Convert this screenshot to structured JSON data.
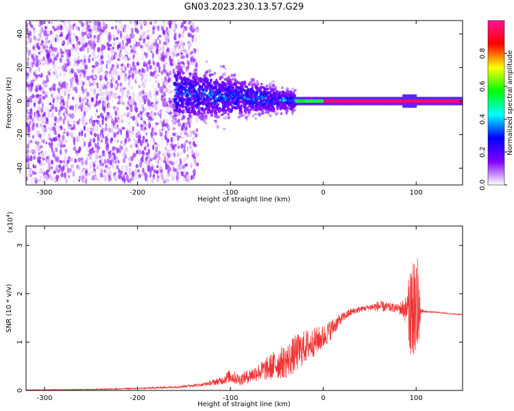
{
  "figure": {
    "title": "GN03.2023.230.13.57.G29"
  },
  "chart_data": [
    {
      "type": "heatmap",
      "title": "GN03.2023.230.13.57.G29",
      "xlabel": "Height of straight line (km)",
      "ylabel": "Frequency (Hz)",
      "xlim": [
        -320,
        150
      ],
      "ylim": [
        -50,
        48
      ],
      "x_ticks": [
        -300,
        -200,
        -100,
        0,
        100
      ],
      "y_ticks": [
        -40,
        -20,
        0,
        20,
        40
      ],
      "x_tick_labels": [
        "-300",
        "-200",
        "-100",
        "0",
        "100"
      ],
      "y_tick_labels": [
        "-40",
        "-20",
        "0",
        "20",
        "40"
      ],
      "colorbar": {
        "label": "Normalized spectral amplitude",
        "range": [
          0,
          1
        ],
        "ticks": [
          0.0,
          0.2,
          0.4,
          0.6,
          0.8
        ],
        "tick_labels": [
          "0.0",
          "0.2",
          "0.4",
          "0.6",
          "0.8"
        ],
        "colors": [
          "#ffffff",
          "#8000ff",
          "#0000ff",
          "#00ffff",
          "#00ff00",
          "#ffff00",
          "#ff0000",
          "#ff1493"
        ]
      },
      "features": [
        {
          "x_range": [
            -320,
            -160
          ],
          "description_level": 0.1,
          "spread_hz": 48
        },
        {
          "x_range": [
            -160,
            -30
          ],
          "center_hz": 5,
          "level": 0.25
        },
        {
          "x_range": [
            -30,
            150
          ],
          "center_hz": 0,
          "level": 0.95
        }
      ]
    },
    {
      "type": "line",
      "xlabel": "Height of straight line (km)",
      "ylabel": "SNR (10 * v/v)",
      "y_multiplier_label": "(x10",
      "y_multiplier_exp": "4",
      "y_multiplier_close": ")",
      "xlim": [
        -320,
        150
      ],
      "ylim": [
        0,
        3.4
      ],
      "x_ticks": [
        -300,
        -200,
        -100,
        0,
        100
      ],
      "y_ticks": [
        0,
        1,
        2,
        3
      ],
      "x_tick_labels": [
        "-300",
        "-200",
        "-100",
        "0",
        "100"
      ],
      "y_tick_labels": [
        "0",
        "1",
        "2",
        "3"
      ],
      "color": "#ee3333",
      "series": [
        {
          "x": [
            -320,
            -250,
            -200,
            -160,
            -130,
            -110,
            -100,
            -90,
            -80,
            -70,
            -60,
            -50,
            -40,
            -30,
            -20,
            -10,
            0,
            10,
            20,
            30,
            40,
            50,
            60,
            70,
            80,
            90,
            95,
            100,
            105,
            110,
            120,
            130,
            140,
            150
          ],
          "y": [
            0.01,
            0.02,
            0.04,
            0.07,
            0.12,
            0.2,
            0.3,
            0.22,
            0.3,
            0.38,
            0.45,
            0.55,
            0.6,
            0.75,
            0.9,
            1.0,
            1.1,
            1.3,
            1.5,
            1.62,
            1.68,
            1.72,
            1.74,
            1.72,
            1.7,
            1.68,
            1.7,
            1.66,
            1.63,
            1.63,
            1.62,
            1.6,
            1.58,
            1.57
          ],
          "noise": [
            0.005,
            0.01,
            0.015,
            0.02,
            0.03,
            0.08,
            0.15,
            0.12,
            0.15,
            0.18,
            0.25,
            0.32,
            0.35,
            0.4,
            0.35,
            0.3,
            0.25,
            0.2,
            0.1,
            0.08,
            0.06,
            0.06,
            0.12,
            0.1,
            0.08,
            0.3,
            1.2,
            1.4,
            0.05,
            0.02,
            0.01,
            0.01,
            0.01,
            0.01
          ]
        }
      ]
    }
  ]
}
